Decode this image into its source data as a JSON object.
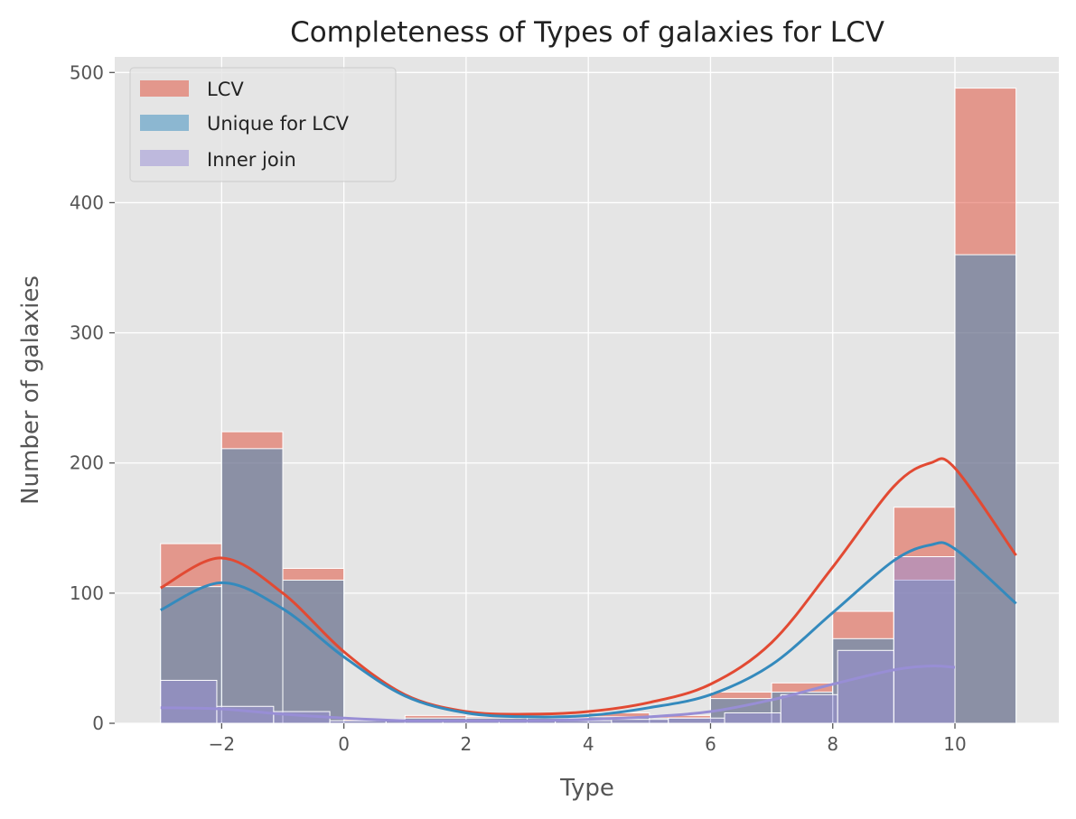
{
  "chart_data": {
    "type": "bar",
    "title": "Completeness of Types of galaxies for LCV",
    "xlabel": "Type",
    "ylabel": "Number of galaxies",
    "xlim": [
      -3.75,
      11.7
    ],
    "ylim": [
      0,
      512
    ],
    "x_ticks": [
      -2,
      0,
      2,
      4,
      6,
      8,
      10
    ],
    "x_tick_labels": [
      "−2",
      "0",
      "2",
      "4",
      "6",
      "8",
      "10"
    ],
    "y_ticks": [
      0,
      100,
      200,
      300,
      400,
      500
    ],
    "y_tick_labels": [
      "0",
      "100",
      "200",
      "300",
      "400",
      "500"
    ],
    "grid": true,
    "legend_position": "top-left",
    "series": [
      {
        "name": "LCV",
        "color": "#e24a33",
        "bins": [
          {
            "x0": -3,
            "x1": -2,
            "value": 138
          },
          {
            "x0": -2,
            "x1": -1,
            "value": 224
          },
          {
            "x0": -1,
            "x1": 0,
            "value": 119
          },
          {
            "x0": 0,
            "x1": 1,
            "value": 3
          },
          {
            "x0": 1,
            "x1": 2,
            "value": 6
          },
          {
            "x0": 2,
            "x1": 3,
            "value": 5
          },
          {
            "x0": 3,
            "x1": 4,
            "value": 5
          },
          {
            "x0": 4,
            "x1": 5,
            "value": 8
          },
          {
            "x0": 5,
            "x1": 6,
            "value": 6
          },
          {
            "x0": 6,
            "x1": 7,
            "value": 24
          },
          {
            "x0": 7,
            "x1": 8,
            "value": 31
          },
          {
            "x0": 8,
            "x1": 9,
            "value": 86
          },
          {
            "x0": 9,
            "x1": 10,
            "value": 166
          },
          {
            "x0": 10,
            "x1": 11,
            "value": 488
          }
        ],
        "kde": [
          [
            -3,
            104
          ],
          [
            -2,
            127
          ],
          [
            -1,
            100
          ],
          [
            0,
            55
          ],
          [
            1,
            22
          ],
          [
            2,
            9
          ],
          [
            3,
            7
          ],
          [
            4,
            9
          ],
          [
            5,
            16
          ],
          [
            6,
            30
          ],
          [
            7,
            62
          ],
          [
            8,
            120
          ],
          [
            9,
            182
          ],
          [
            9.6,
            200
          ],
          [
            10,
            196
          ],
          [
            11,
            129
          ]
        ]
      },
      {
        "name": "Unique for LCV",
        "color": "#348abd",
        "bins": [
          {
            "x0": -3,
            "x1": -2,
            "value": 105
          },
          {
            "x0": -2,
            "x1": -1,
            "value": 211
          },
          {
            "x0": -1,
            "x1": 0,
            "value": 110
          },
          {
            "x0": 0,
            "x1": 1,
            "value": 2
          },
          {
            "x0": 1,
            "x1": 2,
            "value": 4
          },
          {
            "x0": 2,
            "x1": 3,
            "value": 4
          },
          {
            "x0": 3,
            "x1": 4,
            "value": 4
          },
          {
            "x0": 4,
            "x1": 5,
            "value": 5
          },
          {
            "x0": 5,
            "x1": 6,
            "value": 4
          },
          {
            "x0": 6,
            "x1": 7,
            "value": 19
          },
          {
            "x0": 7,
            "x1": 8,
            "value": 24
          },
          {
            "x0": 8,
            "x1": 9,
            "value": 65
          },
          {
            "x0": 9,
            "x1": 10,
            "value": 110
          },
          {
            "x0": 10,
            "x1": 11,
            "value": 360
          }
        ],
        "kde": [
          [
            -3,
            87
          ],
          [
            -2,
            108
          ],
          [
            -1,
            88
          ],
          [
            0,
            51
          ],
          [
            1,
            21
          ],
          [
            2,
            8
          ],
          [
            3,
            5
          ],
          [
            4,
            6
          ],
          [
            5,
            12
          ],
          [
            6,
            22
          ],
          [
            7,
            45
          ],
          [
            8,
            85
          ],
          [
            9,
            125
          ],
          [
            9.6,
            137
          ],
          [
            10,
            134
          ],
          [
            11,
            92
          ]
        ]
      },
      {
        "name": "Inner join",
        "color": "#988ed5",
        "bins": [
          {
            "x0": -3,
            "x1": -2.08,
            "value": 33
          },
          {
            "x0": -2.08,
            "x1": -1.15,
            "value": 13
          },
          {
            "x0": -1.15,
            "x1": -0.23,
            "value": 9
          },
          {
            "x0": -0.23,
            "x1": 0.69,
            "value": 2
          },
          {
            "x0": 0.69,
            "x1": 1.62,
            "value": 2
          },
          {
            "x0": 1.62,
            "x1": 2.54,
            "value": 2
          },
          {
            "x0": 2.54,
            "x1": 3.46,
            "value": 2
          },
          {
            "x0": 3.46,
            "x1": 4.38,
            "value": 2
          },
          {
            "x0": 4.38,
            "x1": 5.31,
            "value": 3
          },
          {
            "x0": 5.31,
            "x1": 6.23,
            "value": 4
          },
          {
            "x0": 6.23,
            "x1": 7.15,
            "value": 8
          },
          {
            "x0": 7.15,
            "x1": 8.08,
            "value": 22
          },
          {
            "x0": 8.08,
            "x1": 9,
            "value": 56
          },
          {
            "x0": 9,
            "x1": 10,
            "value": 128
          }
        ],
        "kde": [
          [
            -3,
            12
          ],
          [
            -2,
            11
          ],
          [
            -1,
            7
          ],
          [
            0,
            4
          ],
          [
            1,
            2
          ],
          [
            2,
            2
          ],
          [
            3,
            2
          ],
          [
            4,
            3
          ],
          [
            5,
            5
          ],
          [
            6,
            9
          ],
          [
            7,
            18
          ],
          [
            8,
            30
          ],
          [
            9,
            41
          ],
          [
            9.6,
            44
          ],
          [
            10,
            43
          ]
        ]
      }
    ]
  }
}
